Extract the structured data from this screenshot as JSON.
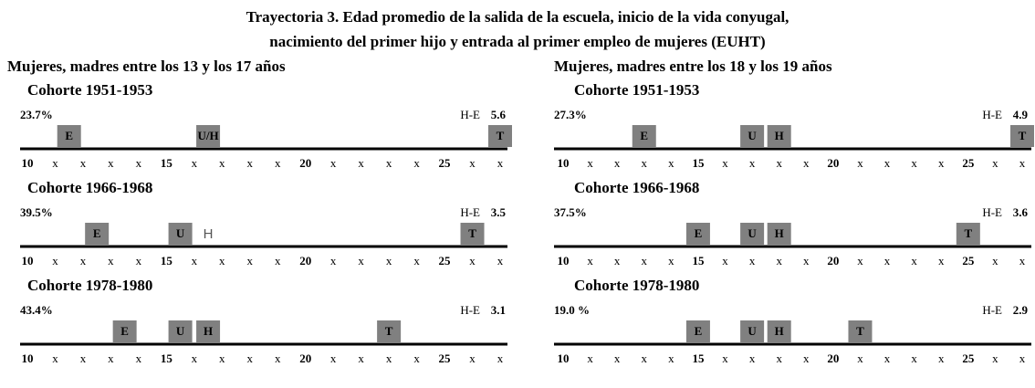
{
  "title": [
    "Trayectoria 3. Edad promedio de la salida de la escuela, inicio de la vida conyugal,",
    "nacimiento del primer hijo y entrada al primer empleo de mujeres (EUHT)"
  ],
  "axis_labels": [
    10,
    "x",
    "x",
    "x",
    "x",
    15,
    "x",
    "x",
    "x",
    "x",
    20,
    "x",
    "x",
    "x",
    "x",
    25,
    "x",
    "x"
  ],
  "panels": [
    {
      "title": "Mujeres, madres entre los 13 y los 17 años",
      "cohorts": [
        {
          "title": "Cohorte 1951-1953",
          "percent": "23.7%",
          "he_label": "H-E",
          "he_value": 5.6,
          "markers": [
            {
              "label": "E",
              "age": 11.5
            },
            {
              "label": "U/H",
              "age": 16.5
            },
            {
              "label": "T",
              "age": 27
            }
          ]
        },
        {
          "title": "Cohorte 1966-1968",
          "percent": "39.5%",
          "he_label": "H-E",
          "he_value": 3.5,
          "markers": [
            {
              "label": "E",
              "age": 12.5
            },
            {
              "label": "U",
              "age": 15.5
            },
            {
              "label": "H",
              "age": 16.5,
              "faint": true
            },
            {
              "label": "T",
              "age": 26
            }
          ]
        },
        {
          "title": "Cohorte 1978-1980",
          "percent": "43.4%",
          "he_label": "H-E",
          "he_value": 3.1,
          "markers": [
            {
              "label": "E",
              "age": 13.5
            },
            {
              "label": "U",
              "age": 15.5
            },
            {
              "label": "H",
              "age": 16.5
            },
            {
              "label": "T",
              "age": 23
            }
          ]
        }
      ]
    },
    {
      "title": "Mujeres, madres entre los 18 y los 19 años",
      "cohorts": [
        {
          "title": "Cohorte 1951-1953",
          "percent": "27.3%",
          "he_label": "H-E",
          "he_value": 4.9,
          "markers": [
            {
              "label": "E",
              "age": 13
            },
            {
              "label": "U",
              "age": 17
            },
            {
              "label": "H",
              "age": 18
            },
            {
              "label": "T",
              "age": 27
            }
          ]
        },
        {
          "title": "Cohorte 1966-1968",
          "percent": "37.5%",
          "he_label": "H-E",
          "he_value": 3.6,
          "markers": [
            {
              "label": "E",
              "age": 15
            },
            {
              "label": "U",
              "age": 17
            },
            {
              "label": "H",
              "age": 18
            },
            {
              "label": "T",
              "age": 25
            }
          ]
        },
        {
          "title": "Cohorte 1978-1980",
          "percent": "19.0 %",
          "he_label": "H-E",
          "he_value": 2.9,
          "markers": [
            {
              "label": "E",
              "age": 15
            },
            {
              "label": "U",
              "age": 17
            },
            {
              "label": "H",
              "age": 18
            },
            {
              "label": "T",
              "age": 21
            }
          ]
        }
      ]
    }
  ]
}
